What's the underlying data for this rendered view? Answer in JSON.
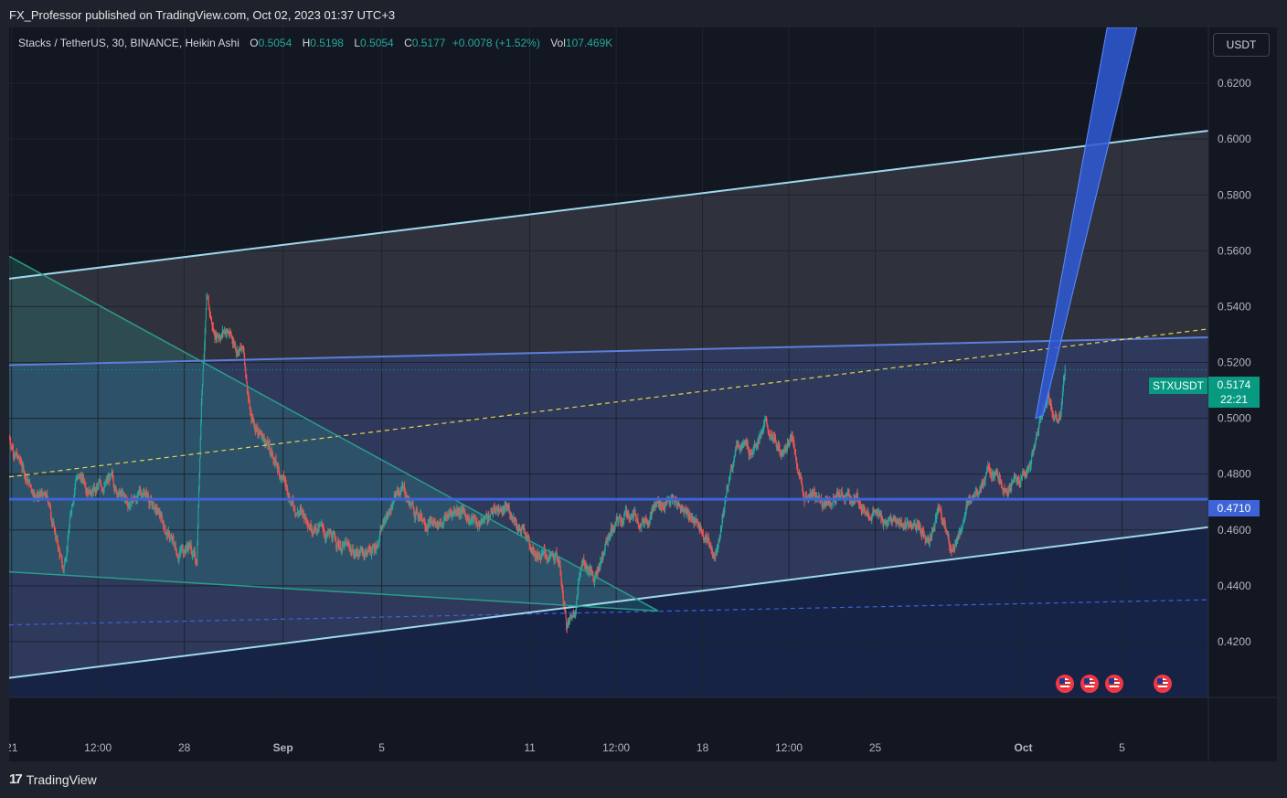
{
  "header": {
    "published_line": "FX_Professor published on TradingView.com, Oct 02, 2023 01:37 UTC+3"
  },
  "legend": {
    "symbol_text": "Stacks / TetherUS, 30, BINANCE, Heikin Ashi",
    "o_label": "O",
    "o_value": "0.5054",
    "h_label": "H",
    "h_value": "0.5198",
    "l_label": "L",
    "l_value": "0.5054",
    "c_label": "C",
    "c_value": "0.5177",
    "change": "+0.0078 (+1.52%)",
    "vol_label": "Vol",
    "vol_value": "107.469K"
  },
  "currency_button": "USDT",
  "markers": {
    "symbol": "STXUSDT",
    "last_price": "0.5174",
    "countdown": "22:21",
    "level": "0.4710"
  },
  "footer": {
    "brand": "TradingView",
    "logo_text": "17"
  },
  "colors": {
    "background": "#131722",
    "up": "#26a69a",
    "down": "#ef5350",
    "channel": "#9fd8ec",
    "level": "#3d63d6",
    "dashed_yellow": "#e6d44a",
    "dashed_blue": "#3d63d6",
    "triangle": "#2a9d8a",
    "projection": "#2f5bd6"
  },
  "chart_data": {
    "type": "candlestick",
    "style": "Heikin Ashi",
    "symbol": "Stacks / TetherUS",
    "interval": "30",
    "exchange": "BINANCE",
    "y_ticks": [
      0.42,
      0.44,
      0.46,
      0.48,
      0.5,
      0.52,
      0.54,
      0.56,
      0.58,
      0.6,
      0.62
    ],
    "y_tick_labels": [
      "0.4200",
      "0.4400",
      "0.4600",
      "0.4800",
      "0.5000",
      "0.5200",
      "0.5400",
      "0.5600",
      "0.5800",
      "0.6000",
      "0.6200"
    ],
    "ylim": [
      0.4,
      0.64
    ],
    "x_tick_labels": [
      "21",
      "12:00",
      "28",
      "Sep",
      "5",
      "11",
      "12:00",
      "18",
      "12:00",
      "25",
      "Oct",
      "5"
    ],
    "x_ticks_day": [
      -11,
      -7.5,
      -4,
      0,
      4,
      10,
      13.5,
      17,
      20.5,
      24,
      30,
      34
    ],
    "xlim_day": [
      -11.1,
      37.5
    ],
    "price_path": [
      [
        -11.1,
        0.493
      ],
      [
        -10.2,
        0.475
      ],
      [
        -9.5,
        0.47
      ],
      [
        -8.9,
        0.445
      ],
      [
        -8.4,
        0.48
      ],
      [
        -7.6,
        0.474
      ],
      [
        -7,
        0.478
      ],
      [
        -6.3,
        0.469
      ],
      [
        -5.6,
        0.474
      ],
      [
        -4.9,
        0.463
      ],
      [
        -4.3,
        0.452
      ],
      [
        -3.8,
        0.455
      ],
      [
        -3.5,
        0.448
      ],
      [
        -3.3,
        0.51
      ],
      [
        -3.1,
        0.542
      ],
      [
        -2.8,
        0.53
      ],
      [
        -2.3,
        0.532
      ],
      [
        -1.9,
        0.526
      ],
      [
        -1.6,
        0.524
      ],
      [
        -1.3,
        0.5
      ],
      [
        -0.7,
        0.492
      ],
      [
        -0.1,
        0.48
      ],
      [
        0.5,
        0.468
      ],
      [
        1.3,
        0.462
      ],
      [
        2.1,
        0.456
      ],
      [
        2.9,
        0.452
      ],
      [
        3.7,
        0.453
      ],
      [
        4.2,
        0.465
      ],
      [
        4.8,
        0.476
      ],
      [
        5.3,
        0.467
      ],
      [
        6.2,
        0.462
      ],
      [
        7.1,
        0.468
      ],
      [
        7.9,
        0.462
      ],
      [
        8.7,
        0.468
      ],
      [
        9.3,
        0.466
      ],
      [
        9.8,
        0.458
      ],
      [
        10.4,
        0.452
      ],
      [
        11.2,
        0.448
      ],
      [
        11.5,
        0.425
      ],
      [
        11.8,
        0.43
      ],
      [
        12.1,
        0.45
      ],
      [
        12.6,
        0.443
      ],
      [
        13.3,
        0.46
      ],
      [
        14,
        0.466
      ],
      [
        14.6,
        0.464
      ],
      [
        15.3,
        0.47
      ],
      [
        15.9,
        0.47
      ],
      [
        16.5,
        0.466
      ],
      [
        17.1,
        0.458
      ],
      [
        17.5,
        0.451
      ],
      [
        17.9,
        0.47
      ],
      [
        18.4,
        0.492
      ],
      [
        18.9,
        0.488
      ],
      [
        19.5,
        0.498
      ],
      [
        20.1,
        0.488
      ],
      [
        20.6,
        0.493
      ],
      [
        21.1,
        0.473
      ],
      [
        21.9,
        0.471
      ],
      [
        22.6,
        0.472
      ],
      [
        23.4,
        0.47
      ],
      [
        24.2,
        0.464
      ],
      [
        24.9,
        0.462
      ],
      [
        25.6,
        0.462
      ],
      [
        26.2,
        0.455
      ],
      [
        26.6,
        0.47
      ],
      [
        27.1,
        0.452
      ],
      [
        27.6,
        0.464
      ],
      [
        28.1,
        0.476
      ],
      [
        28.6,
        0.48
      ],
      [
        29.2,
        0.476
      ],
      [
        29.8,
        0.477
      ],
      [
        30.3,
        0.484
      ],
      [
        30.7,
        0.5
      ],
      [
        31,
        0.51
      ],
      [
        31.2,
        0.502
      ],
      [
        31.5,
        0.5
      ],
      [
        31.7,
        0.5177
      ]
    ],
    "lines": {
      "channel_upper": [
        [
          -11.1,
          0.55
        ],
        [
          37.5,
          0.603
        ]
      ],
      "channel_lower": [
        [
          -11.1,
          0.407
        ],
        [
          37.5,
          0.461
        ]
      ],
      "horizontal_level": 0.471,
      "dashed_midline": [
        [
          -11.1,
          0.479
        ],
        [
          37.5,
          0.532
        ]
      ],
      "dashed_lower": [
        [
          -11.1,
          0.426
        ],
        [
          37.5,
          0.435
        ]
      ],
      "blue_upper_band": [
        [
          -11.1,
          0.519
        ],
        [
          37.5,
          0.529
        ]
      ],
      "triangle": [
        [
          -11.1,
          0.558
        ],
        [
          15.2,
          0.431
        ],
        [
          -11.1,
          0.445
        ]
      ],
      "projection": [
        [
          30.5,
          0.5
        ],
        [
          33.4,
          0.64
        ],
        [
          34.6,
          0.64
        ],
        [
          30.8,
          0.501
        ]
      ]
    }
  }
}
